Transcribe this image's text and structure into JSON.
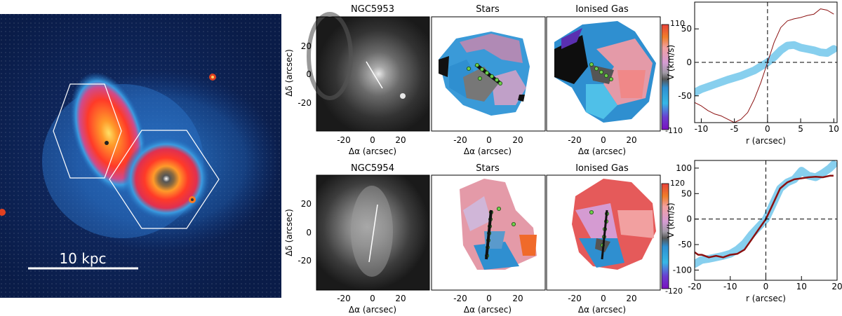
{
  "scalebar": {
    "label": "10 kpc"
  },
  "rows": [
    {
      "galaxy": "NGC5953",
      "panel_titles": [
        "NGC5953",
        "Stars",
        "Ionised Gas"
      ],
      "colorbar": {
        "max": "110",
        "min": "-110"
      },
      "y_ticks": [
        "20",
        "0",
        "-20"
      ],
      "x_ticks": [
        "-20",
        "0",
        "20"
      ],
      "x_label": "Δα (arcsec)",
      "x_label_split": [
        "Δα",
        "(arcsec)"
      ],
      "y_label": "Δδ (arcsec)"
    },
    {
      "galaxy": "NGC5954",
      "panel_titles": [
        "NGC5954",
        "Stars",
        "Ionised Gas"
      ],
      "colorbar": {
        "max": "120",
        "min": "-120"
      },
      "y_ticks": [
        "20",
        "0",
        "-20"
      ],
      "x_ticks": [
        "-20",
        "0",
        "20"
      ],
      "x_label": "Δα (arcsec)",
      "x_label_split": [
        "Δα",
        "(arcsec)"
      ],
      "y_label": "Δδ (arcsec)"
    }
  ],
  "chart_data": [
    {
      "type": "line",
      "ylabel": "V (km/s)",
      "xlabel": "r (arcsec)",
      "xlim": [
        -11,
        10.5
      ],
      "ylim": [
        -90,
        90
      ],
      "x_ticks": [
        -10,
        -5,
        0,
        5,
        10
      ],
      "y_ticks": [
        -50,
        0,
        50
      ],
      "series": [
        {
          "style": "band",
          "color": "#87cfee",
          "x": [
            -11,
            -10,
            -8,
            -6,
            -4,
            -2,
            0,
            1,
            2,
            3,
            4,
            5,
            6,
            7,
            8,
            9,
            10
          ],
          "y": [
            -45,
            -40,
            -33,
            -26,
            -20,
            -12,
            0,
            8,
            18,
            25,
            26,
            22,
            20,
            18,
            15,
            14,
            20
          ]
        },
        {
          "style": "line",
          "color": "#8b1010",
          "x": [
            -11,
            -10,
            -9,
            -8,
            -7,
            -6,
            -5,
            -4,
            -3,
            -2,
            -1,
            0,
            1,
            2,
            3,
            4,
            5,
            6,
            7,
            8,
            9,
            10
          ],
          "y": [
            -60,
            -65,
            -72,
            -77,
            -80,
            -85,
            -90,
            -85,
            -75,
            -55,
            -30,
            0,
            30,
            52,
            62,
            65,
            67,
            70,
            72,
            80,
            78,
            72
          ]
        }
      ]
    },
    {
      "type": "line",
      "ylabel": "V (km/s)",
      "xlabel": "r (arcsec)",
      "xlim": [
        -20,
        20
      ],
      "ylim": [
        -120,
        115
      ],
      "x_ticks": [
        -20,
        -10,
        0,
        10,
        20
      ],
      "y_ticks": [
        -100,
        -50,
        0,
        50,
        100
      ],
      "series": [
        {
          "style": "band",
          "color": "#87cfee",
          "x": [
            -20,
            -18,
            -16,
            -14,
            -12,
            -10,
            -8,
            -6,
            -4,
            -2,
            0,
            2,
            4,
            6,
            8,
            10,
            12,
            14,
            16,
            18,
            19
          ],
          "y": [
            -88,
            -80,
            -78,
            -75,
            -72,
            -68,
            -60,
            -48,
            -30,
            -15,
            0,
            30,
            60,
            72,
            78,
            95,
            85,
            82,
            90,
            100,
            107
          ]
        },
        {
          "style": "line",
          "color": "#8b1010",
          "x": [
            -20,
            -19,
            -18,
            -16,
            -14,
            -12,
            -10,
            -8,
            -6,
            -4,
            -2,
            0,
            2,
            4,
            6,
            8,
            10,
            12,
            14,
            16,
            18,
            19
          ],
          "y": [
            -65,
            -70,
            -70,
            -75,
            -72,
            -75,
            -70,
            -68,
            -60,
            -40,
            -20,
            0,
            30,
            60,
            72,
            78,
            80,
            82,
            83,
            82,
            85,
            85
          ]
        }
      ]
    }
  ]
}
